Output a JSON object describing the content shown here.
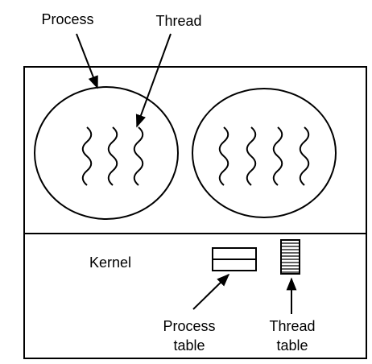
{
  "labels": {
    "process": "Process",
    "thread": "Thread",
    "kernel": "Kernel",
    "process_table": [
      "Process",
      "table"
    ],
    "thread_table": [
      "Thread",
      "table"
    ]
  }
}
